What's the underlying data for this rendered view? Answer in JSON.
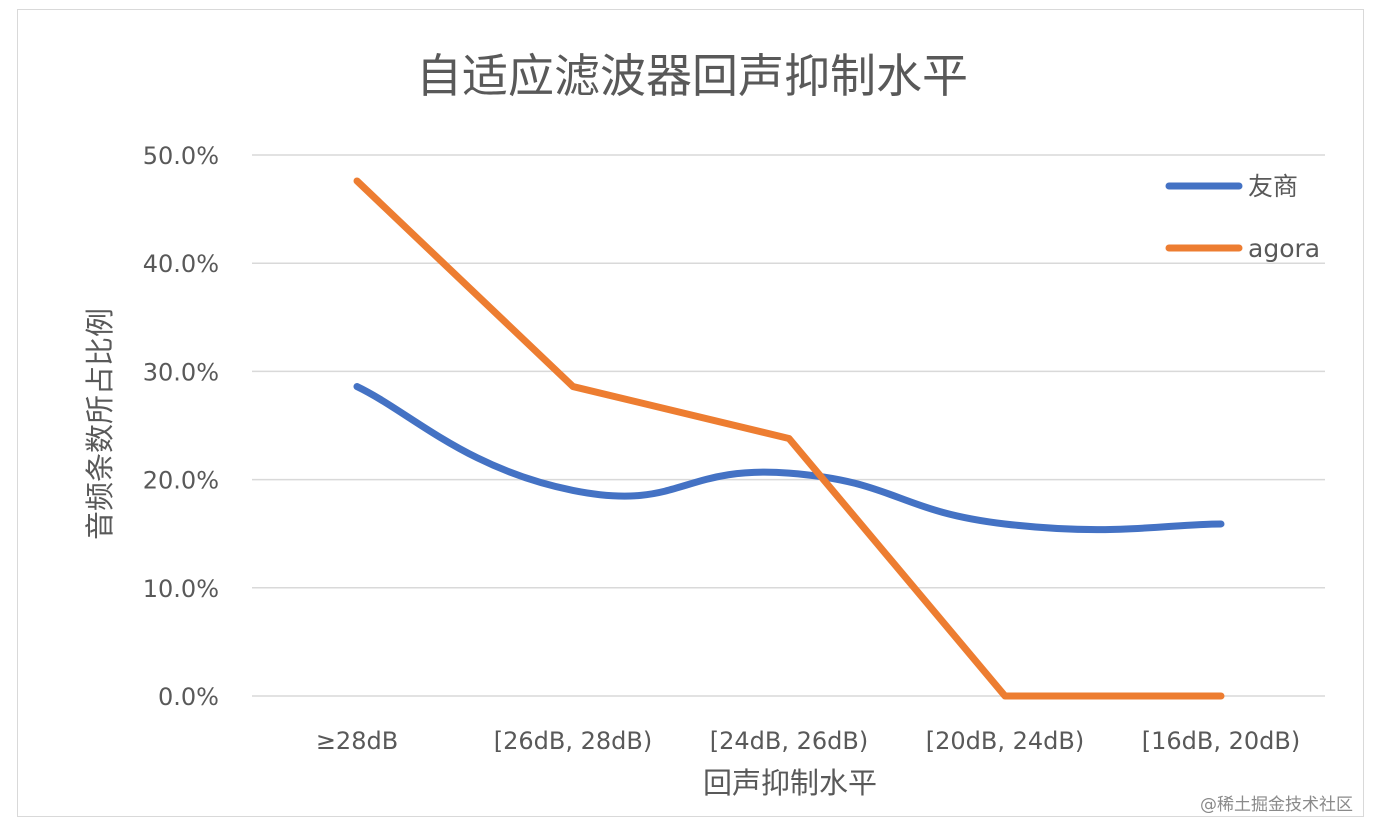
{
  "chart_data": {
    "type": "line",
    "title": "自适应滤波器回声抑制水平",
    "xlabel": "回声抑制水平",
    "ylabel": "音频条数所占比例",
    "categories": [
      "≥28dB",
      "[26dB, 28dB)",
      "[24dB, 26dB)",
      "[20dB, 24dB)",
      "[16dB, 20dB)"
    ],
    "series": [
      {
        "name": "友商",
        "values": [
          0.286,
          0.19,
          0.206,
          0.159,
          0.159
        ],
        "color": "#4472c4",
        "smooth": true
      },
      {
        "name": "agora",
        "values": [
          0.476,
          0.286,
          0.238,
          0.0,
          0.0
        ],
        "color": "#ed7d31",
        "smooth": false
      }
    ],
    "y_ticks": [
      "0.0%",
      "10.0%",
      "20.0%",
      "30.0%",
      "40.0%",
      "50.0%"
    ],
    "ylim": [
      0,
      0.5
    ],
    "grid": true,
    "legend_position": "top-right"
  },
  "watermark": "@稀土掘金技术社区"
}
